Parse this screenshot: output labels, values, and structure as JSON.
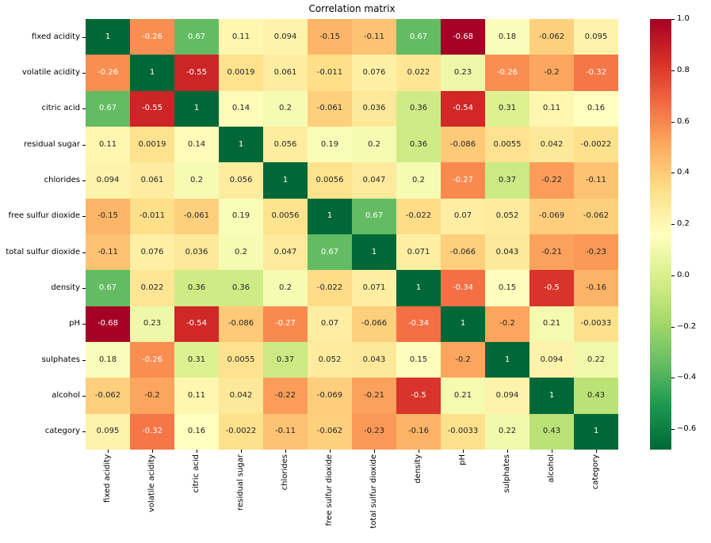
{
  "chart_data": {
    "type": "heatmap",
    "title": "Correlation matrix",
    "labels": [
      "fixed acidity",
      "volatile acidity",
      "citric acid",
      "residual sugar",
      "chlorides",
      "free sulfur dioxide",
      "total sulfur dioxide",
      "density",
      "pH",
      "sulphates",
      "alcohol",
      "category"
    ],
    "matrix": [
      [
        "1",
        "-0.26",
        "0.67",
        "0.11",
        "0.094",
        "-0.15",
        "-0.11",
        "0.67",
        "-0.68",
        "0.18",
        "-0.062",
        "0.095"
      ],
      [
        "-0.26",
        "1",
        "-0.55",
        "0.0019",
        "0.061",
        "-0.011",
        "0.076",
        "0.022",
        "0.23",
        "-0.26",
        "-0.2",
        "-0.32"
      ],
      [
        "0.67",
        "-0.55",
        "1",
        "0.14",
        "0.2",
        "-0.061",
        "0.036",
        "0.36",
        "-0.54",
        "0.31",
        "0.11",
        "0.16"
      ],
      [
        "0.11",
        "0.0019",
        "0.14",
        "1",
        "0.056",
        "0.19",
        "0.2",
        "0.36",
        "-0.086",
        "0.0055",
        "0.042",
        "-0.0022"
      ],
      [
        "0.094",
        "0.061",
        "0.2",
        "0.056",
        "1",
        "0.0056",
        "0.047",
        "0.2",
        "-0.27",
        "0.37",
        "-0.22",
        "-0.11"
      ],
      [
        "-0.15",
        "-0.011",
        "-0.061",
        "0.19",
        "0.0056",
        "1",
        "0.67",
        "-0.022",
        "0.07",
        "0.052",
        "-0.069",
        "-0.062"
      ],
      [
        "-0.11",
        "0.076",
        "0.036",
        "0.2",
        "0.047",
        "0.67",
        "1",
        "0.071",
        "-0.066",
        "0.043",
        "-0.21",
        "-0.23"
      ],
      [
        "0.67",
        "0.022",
        "0.36",
        "0.36",
        "0.2",
        "-0.022",
        "0.071",
        "1",
        "-0.34",
        "0.15",
        "-0.5",
        "-0.16"
      ],
      [
        "-0.68",
        "0.23",
        "-0.54",
        "-0.086",
        "-0.27",
        "0.07",
        "-0.066",
        "-0.34",
        "1",
        "-0.2",
        "0.21",
        "-0.0033"
      ],
      [
        "0.18",
        "-0.26",
        "0.31",
        "0.0055",
        "0.37",
        "0.052",
        "0.043",
        "0.15",
        "-0.2",
        "1",
        "0.094",
        "0.22"
      ],
      [
        "-0.062",
        "-0.2",
        "0.11",
        "0.042",
        "-0.22",
        "-0.069",
        "-0.21",
        "-0.5",
        "0.21",
        "0.094",
        "1",
        "0.43"
      ],
      [
        "0.095",
        "-0.32",
        "0.16",
        "-0.0022",
        "-0.11",
        "-0.062",
        "-0.23",
        "-0.16",
        "-0.0033",
        "0.22",
        "0.43",
        "1"
      ]
    ],
    "vmin": -0.68,
    "vmax": 1.0,
    "colormap": "RdYlGn",
    "colormap_colors": [
      "#a50026",
      "#d73027",
      "#f46d43",
      "#fdae61",
      "#fee08b",
      "#ffffbf",
      "#d9ef8b",
      "#a6d96a",
      "#66bd63",
      "#1a9850",
      "#006837"
    ],
    "annotation_dark_color": "#262626",
    "annotation_light_color": "#ffffff",
    "colorbar_ticks": [
      {
        "label": "1.0",
        "value": 1.0
      },
      {
        "label": "0.8",
        "value": 0.8
      },
      {
        "label": "0.6",
        "value": 0.6
      },
      {
        "label": "0.4",
        "value": 0.4
      },
      {
        "label": "0.2",
        "value": 0.2
      },
      {
        "label": "0.0",
        "value": 0.0
      },
      {
        "label": "−0.2",
        "value": -0.2
      },
      {
        "label": "−0.4",
        "value": -0.4
      },
      {
        "label": "−0.6",
        "value": -0.6
      }
    ],
    "legend_position": "right",
    "grid": false
  }
}
